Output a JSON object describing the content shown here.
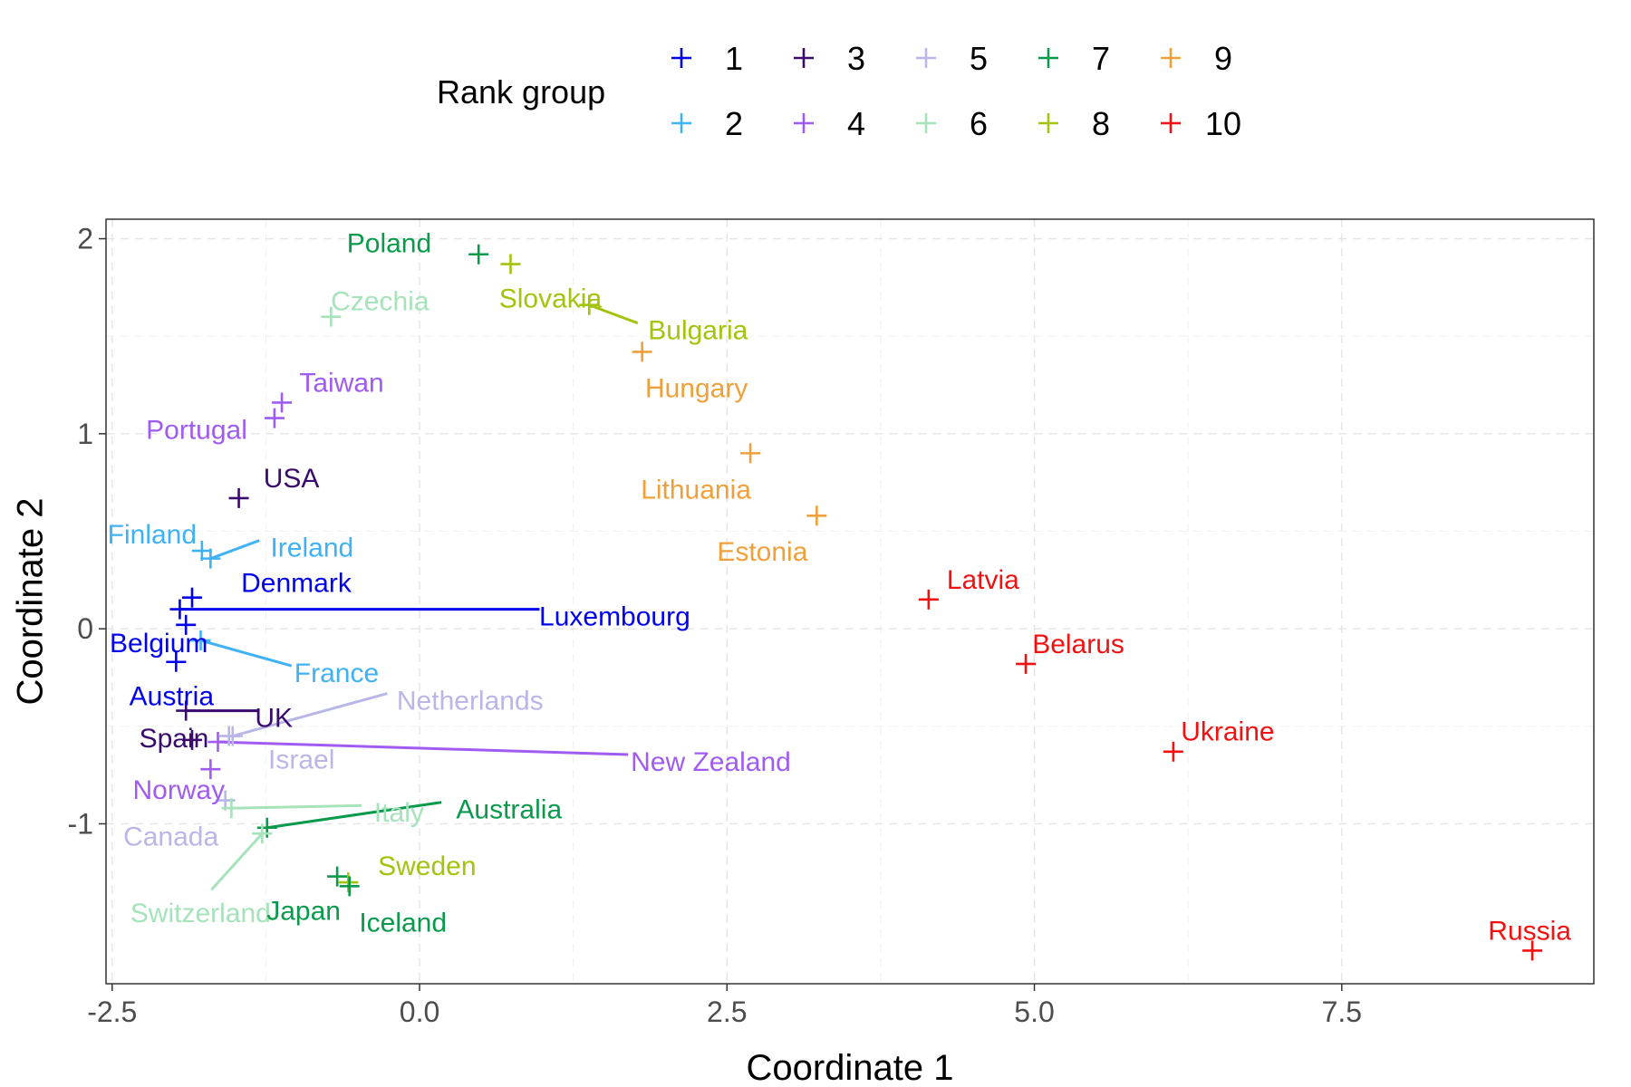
{
  "chart_data": {
    "type": "scatter",
    "xlabel": "Coordinate 1",
    "ylabel": "Coordinate 2",
    "xlim": [
      -2.55,
      9.55
    ],
    "ylim": [
      -1.82,
      2.1
    ],
    "xticks": [
      -2.5,
      0.0,
      2.5,
      5.0,
      7.5
    ],
    "xtick_labels": [
      "-2.5",
      "0.0",
      "2.5",
      "5.0",
      "7.5"
    ],
    "yticks": [
      -1,
      0,
      1,
      2
    ],
    "ytick_labels": [
      "-1",
      "0",
      "1",
      "2"
    ],
    "grid": true,
    "legend": {
      "title": "Rank group",
      "position": "top",
      "entries": [
        {
          "group": "1",
          "color": "#0000ee"
        },
        {
          "group": "2",
          "color": "#3fb1f5"
        },
        {
          "group": "3",
          "color": "#3a0b6b"
        },
        {
          "group": "4",
          "color": "#a05cf2"
        },
        {
          "group": "5",
          "color": "#b9b6e8"
        },
        {
          "group": "6",
          "color": "#a6e3bb"
        },
        {
          "group": "7",
          "color": "#0a9a4c"
        },
        {
          "group": "8",
          "color": "#a3c40e"
        },
        {
          "group": "9",
          "color": "#f0a03a"
        },
        {
          "group": "10",
          "color": "#f21111"
        }
      ]
    },
    "points": [
      {
        "label": "Poland",
        "x": 0.48,
        "y": 1.92,
        "group": "7"
      },
      {
        "label": "Slovakia",
        "x": 0.74,
        "y": 1.87,
        "group": "8"
      },
      {
        "label": "Czechia",
        "x": -0.72,
        "y": 1.6,
        "group": "6"
      },
      {
        "label": "Bulgaria",
        "x": 1.38,
        "y": 1.66,
        "group": "8"
      },
      {
        "label": "Hungary",
        "x": 1.81,
        "y": 1.42,
        "group": "9"
      },
      {
        "label": "Taiwan",
        "x": -1.12,
        "y": 1.16,
        "group": "4"
      },
      {
        "label": "Portugal",
        "x": -1.18,
        "y": 1.08,
        "group": "4"
      },
      {
        "label": "Lithuania",
        "x": 2.69,
        "y": 0.9,
        "group": "9"
      },
      {
        "label": "USA",
        "x": -1.47,
        "y": 0.67,
        "group": "3"
      },
      {
        "label": "Estonia",
        "x": 3.23,
        "y": 0.58,
        "group": "9"
      },
      {
        "label": "Finland",
        "x": -1.77,
        "y": 0.4,
        "group": "2"
      },
      {
        "label": "Ireland",
        "x": -1.7,
        "y": 0.36,
        "group": "2"
      },
      {
        "label": "Latvia",
        "x": 4.14,
        "y": 0.15,
        "group": "10"
      },
      {
        "label": "Denmark",
        "x": -1.85,
        "y": 0.16,
        "group": "1"
      },
      {
        "label": "Luxembourg",
        "x": -1.95,
        "y": 0.1,
        "group": "1"
      },
      {
        "label": "Belgium",
        "x": -1.9,
        "y": 0.02,
        "group": "1"
      },
      {
        "label": "France",
        "x": -1.78,
        "y": -0.06,
        "group": "2"
      },
      {
        "label": "Belarus",
        "x": 4.93,
        "y": -0.18,
        "group": "10"
      },
      {
        "label": "Austria",
        "x": -1.98,
        "y": -0.17,
        "group": "1"
      },
      {
        "label": "UK",
        "x": -1.9,
        "y": -0.42,
        "group": "3"
      },
      {
        "label": "Spain",
        "x": -1.85,
        "y": -0.57,
        "group": "3"
      },
      {
        "label": "Netherlands",
        "x": -1.52,
        "y": -0.55,
        "group": "5"
      },
      {
        "label": "New Zealand",
        "x": -1.64,
        "y": -0.58,
        "group": "4"
      },
      {
        "label": "Israel",
        "x": -1.55,
        "y": -0.55,
        "group": "5"
      },
      {
        "label": "Ukraine",
        "x": 6.13,
        "y": -0.63,
        "group": "10"
      },
      {
        "label": "Norway",
        "x": -1.7,
        "y": -0.72,
        "group": "4"
      },
      {
        "label": "Canada",
        "x": -1.58,
        "y": -0.88,
        "group": "5"
      },
      {
        "label": "Italy",
        "x": -1.53,
        "y": -0.92,
        "group": "6"
      },
      {
        "label": "Australia",
        "x": -1.24,
        "y": -1.02,
        "group": "7"
      },
      {
        "label": "Switzerland",
        "x": -1.28,
        "y": -1.05,
        "group": "6"
      },
      {
        "label": "Japan",
        "x": -0.67,
        "y": -1.27,
        "group": "7"
      },
      {
        "label": "Sweden",
        "x": -0.58,
        "y": -1.3,
        "group": "8"
      },
      {
        "label": "Iceland",
        "x": -0.57,
        "y": -1.32,
        "group": "7"
      },
      {
        "label": "Russia",
        "x": 9.05,
        "y": -1.65,
        "group": "10"
      }
    ]
  }
}
